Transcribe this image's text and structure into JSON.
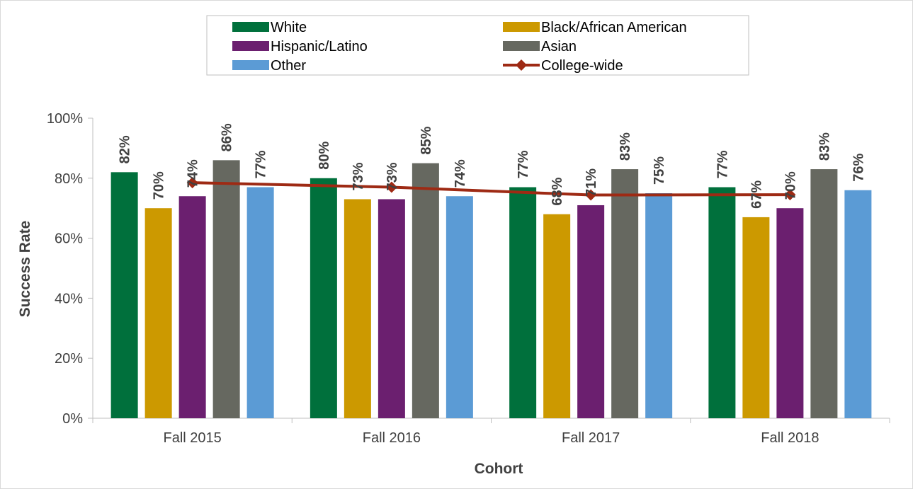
{
  "chart_data": {
    "type": "bar",
    "categories": [
      "Fall 2015",
      "Fall 2016",
      "Fall 2017",
      "Fall 2018"
    ],
    "series": [
      {
        "name": "White",
        "type": "bar",
        "color": "#00703c",
        "values": [
          82,
          80,
          77,
          77
        ],
        "labels": [
          "82%",
          "80%",
          "77%",
          "77%"
        ]
      },
      {
        "name": "Black/African American",
        "type": "bar",
        "color": "#cc9900",
        "values": [
          70,
          73,
          68,
          67
        ],
        "labels": [
          "70%",
          "73%",
          "68%",
          "67%"
        ]
      },
      {
        "name": "Hispanic/Latino",
        "type": "bar",
        "color": "#6b1f6f",
        "values": [
          74,
          73,
          71,
          70
        ],
        "labels": [
          "74%",
          "73%",
          "71%",
          "70%"
        ]
      },
      {
        "name": "Asian",
        "type": "bar",
        "color": "#666860",
        "values": [
          86,
          85,
          83,
          83
        ],
        "labels": [
          "86%",
          "85%",
          "83%",
          "83%"
        ]
      },
      {
        "name": "Other",
        "type": "bar",
        "color": "#5b9bd5",
        "values": [
          77,
          74,
          75,
          76
        ],
        "labels": [
          "77%",
          "74%",
          "75%",
          "76%"
        ]
      },
      {
        "name": "College-wide",
        "type": "line",
        "color": "#9e2a14",
        "marker": "diamond",
        "values": [
          78.5,
          77,
          74.4,
          74.5
        ]
      }
    ],
    "xlabel": "Cohort",
    "ylabel": "Success Rate",
    "ylim": [
      0,
      100
    ],
    "yticks": [
      "0%",
      "20%",
      "40%",
      "60%",
      "80%",
      "100%"
    ],
    "ytick_values": [
      0,
      20,
      40,
      60,
      80,
      100
    ],
    "grid": false,
    "legend_position": "top"
  }
}
